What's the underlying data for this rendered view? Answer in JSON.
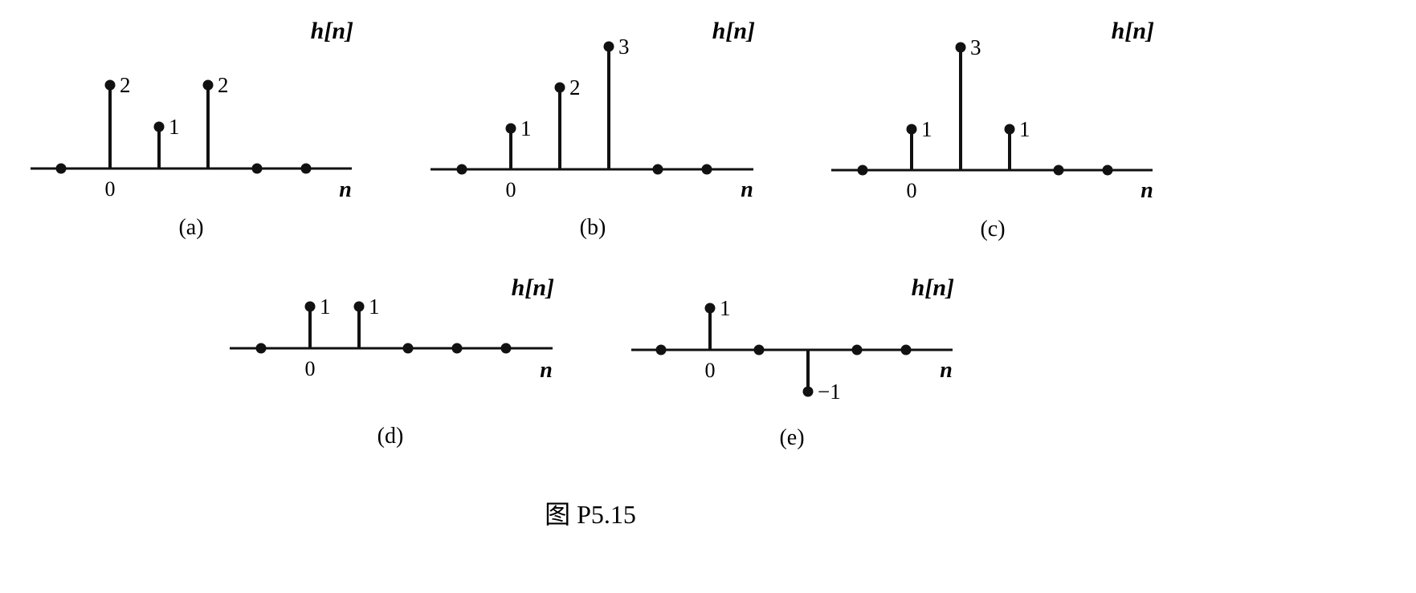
{
  "figure": {
    "caption": "图 P5.15"
  },
  "chart_data": [
    {
      "type": "stem",
      "panel_label": "(a)",
      "ylabel": "h[n]",
      "xlabel": "n",
      "x_tick_label": "0",
      "n": [
        -1,
        0,
        1,
        2,
        3,
        4
      ],
      "values": [
        0,
        2,
        1,
        2,
        0,
        0
      ],
      "value_labels": [
        "",
        "2",
        "1",
        "2",
        "",
        ""
      ]
    },
    {
      "type": "stem",
      "panel_label": "(b)",
      "ylabel": "h[n]",
      "xlabel": "n",
      "x_tick_label": "0",
      "n": [
        -1,
        0,
        1,
        2,
        3,
        4
      ],
      "values": [
        0,
        1,
        2,
        3,
        0,
        0
      ],
      "value_labels": [
        "",
        "1",
        "2",
        "3",
        "",
        ""
      ]
    },
    {
      "type": "stem",
      "panel_label": "(c)",
      "ylabel": "h[n]",
      "xlabel": "n",
      "x_tick_label": "0",
      "n": [
        -1,
        0,
        1,
        2,
        3,
        4
      ],
      "values": [
        0,
        1,
        3,
        1,
        0,
        0
      ],
      "value_labels": [
        "",
        "1",
        "3",
        "1",
        "",
        ""
      ]
    },
    {
      "type": "stem",
      "panel_label": "(d)",
      "ylabel": "h[n]",
      "xlabel": "n",
      "x_tick_label": "0",
      "n": [
        -1,
        0,
        1,
        2,
        3,
        4
      ],
      "values": [
        0,
        1,
        1,
        0,
        0,
        0
      ],
      "value_labels": [
        "",
        "1",
        "1",
        "",
        "",
        ""
      ]
    },
    {
      "type": "stem",
      "panel_label": "(e)",
      "ylabel": "h[n]",
      "xlabel": "n",
      "x_tick_label": "0",
      "n": [
        -1,
        0,
        1,
        2,
        3,
        4
      ],
      "values": [
        0,
        1,
        0,
        -1,
        0,
        0
      ],
      "value_labels": [
        "",
        "1",
        "",
        "−1",
        "",
        ""
      ]
    }
  ]
}
